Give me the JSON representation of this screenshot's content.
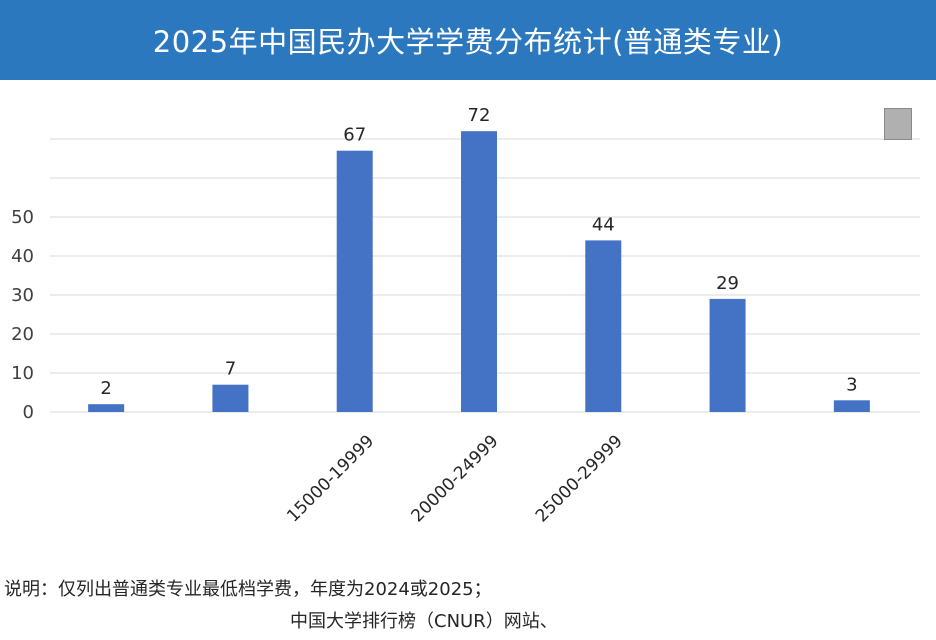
{
  "header": {
    "title": "2025年中国民办大学学费分布统计(普通类专业)"
  },
  "chart_data": {
    "type": "bar",
    "title": "2025年中国民办大学学费分布统计(普通类专业)",
    "categories": [
      "",
      "",
      "15000-19999",
      "20000-24999",
      "25000-29999",
      "",
      ""
    ],
    "values": [
      2,
      7,
      67,
      72,
      44,
      29,
      3
    ],
    "ylim": [
      0,
      80
    ],
    "yticks": [
      "0",
      "10",
      "20",
      "30",
      "40",
      "50",
      "",
      ""
    ],
    "grid": true,
    "bar_color": "#4472c4"
  },
  "footer": {
    "note": "说明：仅列出普通类专业最低档学费，年度为2024或2025；",
    "source": "中国大学排行榜（CNUR）网站、"
  },
  "colors": {
    "header_bg": "#2c78bf",
    "grid": "#d9d9d9"
  }
}
